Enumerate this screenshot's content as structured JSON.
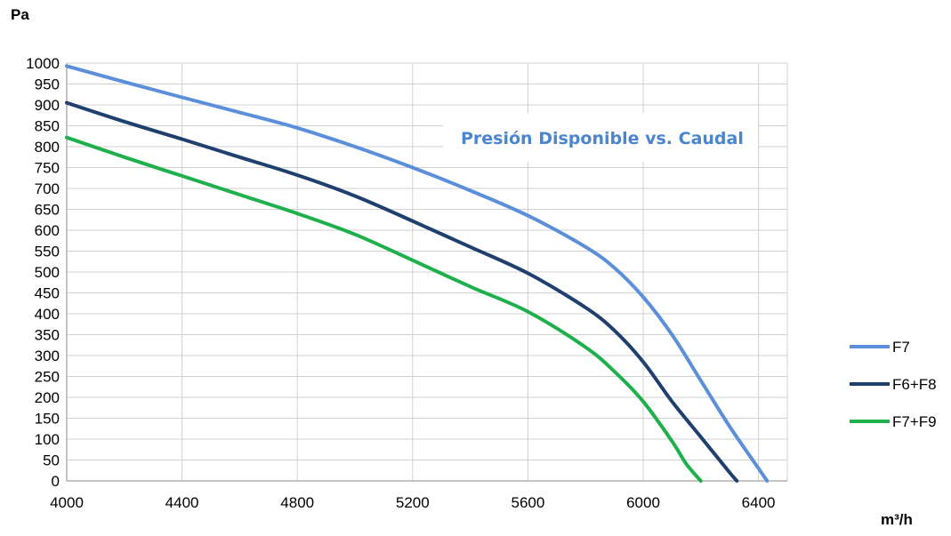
{
  "chart_data": {
    "type": "line",
    "title": "Presión Disponible vs. Caudal",
    "ylabel": "Pa",
    "xlabel": "m³/h",
    "xlim": [
      4000,
      6500
    ],
    "ylim": [
      0,
      1000
    ],
    "x_ticks": [
      4000,
      4400,
      4800,
      5200,
      5600,
      6000,
      6400
    ],
    "y_ticks": [
      0,
      50,
      100,
      150,
      200,
      250,
      300,
      350,
      400,
      450,
      500,
      550,
      600,
      650,
      700,
      750,
      800,
      850,
      900,
      950,
      1000
    ],
    "grid": true,
    "legend_position": "right",
    "series": [
      {
        "name": "F7",
        "color": "#5b8fd9",
        "points": [
          [
            4000,
            993
          ],
          [
            4200,
            955
          ],
          [
            4400,
            918
          ],
          [
            4600,
            882
          ],
          [
            4800,
            845
          ],
          [
            5000,
            800
          ],
          [
            5200,
            750
          ],
          [
            5400,
            695
          ],
          [
            5600,
            635
          ],
          [
            5800,
            560
          ],
          [
            5900,
            510
          ],
          [
            6000,
            440
          ],
          [
            6100,
            350
          ],
          [
            6200,
            240
          ],
          [
            6300,
            130
          ],
          [
            6400,
            30
          ],
          [
            6430,
            0
          ]
        ]
      },
      {
        "name": "F6+F8",
        "color": "#1f3f6e",
        "points": [
          [
            4000,
            905
          ],
          [
            4200,
            860
          ],
          [
            4400,
            818
          ],
          [
            4600,
            775
          ],
          [
            4800,
            732
          ],
          [
            5000,
            682
          ],
          [
            5200,
            622
          ],
          [
            5400,
            560
          ],
          [
            5600,
            497
          ],
          [
            5800,
            415
          ],
          [
            5900,
            360
          ],
          [
            6000,
            285
          ],
          [
            6100,
            190
          ],
          [
            6200,
            105
          ],
          [
            6300,
            20
          ],
          [
            6325,
            0
          ]
        ]
      },
      {
        "name": "F7+F9",
        "color": "#1db04b",
        "points": [
          [
            4000,
            822
          ],
          [
            4200,
            775
          ],
          [
            4400,
            730
          ],
          [
            4600,
            685
          ],
          [
            4800,
            640
          ],
          [
            5000,
            590
          ],
          [
            5200,
            528
          ],
          [
            5400,
            465
          ],
          [
            5600,
            405
          ],
          [
            5800,
            320
          ],
          [
            5900,
            262
          ],
          [
            6000,
            190
          ],
          [
            6100,
            95
          ],
          [
            6150,
            40
          ],
          [
            6200,
            0
          ]
        ]
      }
    ]
  }
}
